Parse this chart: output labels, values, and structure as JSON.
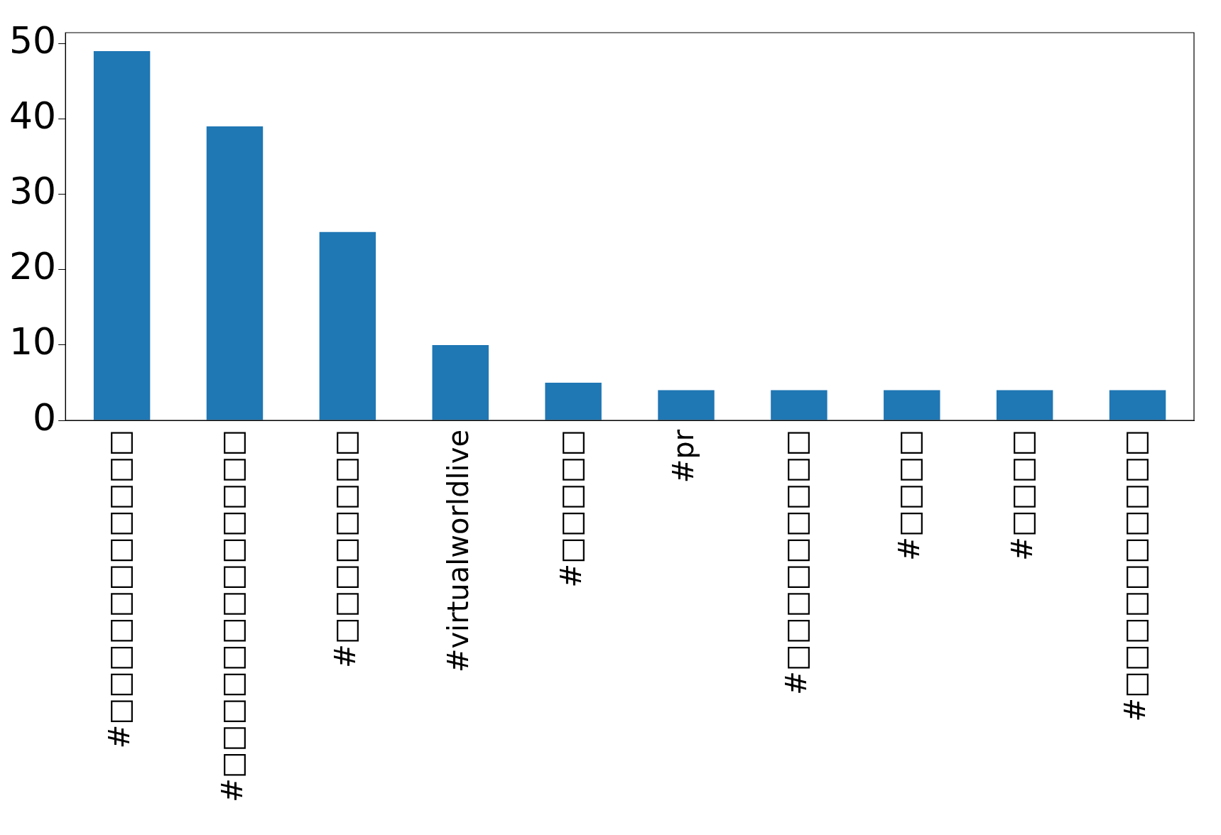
{
  "chart_data": {
    "type": "bar",
    "categories": [
      "#□□□□□□□□□□□",
      "#□□□□□□□□□□□□□",
      "#□□□□□□□□",
      "#virtualworldlive",
      "#□□□□□",
      "#pr",
      "#□□□□□□□□□",
      "#□□□□",
      "#□□□□",
      "#□□□□□□□□□□"
    ],
    "values": [
      49,
      39,
      25,
      10,
      5,
      4,
      4,
      4,
      4,
      4
    ],
    "color": "#1f77b4",
    "ylim": [
      0,
      51.45
    ],
    "yticks": [
      0,
      10,
      20,
      30,
      40,
      50
    ],
    "grid": false
  }
}
